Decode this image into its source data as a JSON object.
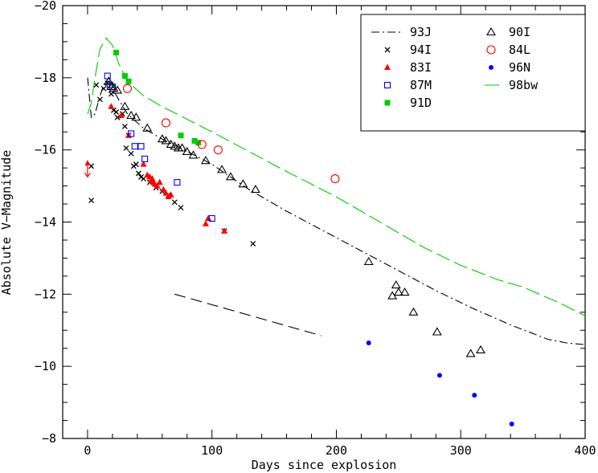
{
  "chart_data": {
    "type": "scatter",
    "xlabel": "Days since explosion",
    "ylabel": "Absolute V−Magnitude",
    "xlim": [
      -20,
      400
    ],
    "ylim": [
      -8,
      -20
    ],
    "y_inverted": true,
    "x_ticks": [
      0,
      100,
      200,
      300,
      400
    ],
    "x_tick_labels": [
      "0",
      "100",
      "200",
      "300",
      "400"
    ],
    "y_ticks": [
      -8,
      -10,
      -12,
      -14,
      -16,
      -18,
      -20
    ],
    "y_tick_labels": [
      "−8",
      "−10",
      "−12",
      "−14",
      "−16",
      "−18",
      "−20"
    ],
    "grid": false,
    "legend_position": "top-right",
    "series": [
      {
        "name": "93J",
        "kind": "line",
        "style": "dashdot",
        "color": "#000000",
        "points": [
          [
            0,
            -18.0
          ],
          [
            3,
            -16.9
          ],
          [
            6,
            -17.0
          ],
          [
            10,
            -17.5
          ],
          [
            14,
            -17.9
          ],
          [
            17,
            -17.9
          ],
          [
            20,
            -17.7
          ],
          [
            25,
            -17.4
          ],
          [
            32,
            -17.0
          ],
          [
            45,
            -16.6
          ],
          [
            60,
            -16.3
          ],
          [
            75,
            -16.05
          ],
          [
            100,
            -15.6
          ],
          [
            130,
            -14.9
          ],
          [
            160,
            -14.3
          ],
          [
            190,
            -13.75
          ],
          [
            220,
            -13.2
          ],
          [
            250,
            -12.65
          ],
          [
            280,
            -12.1
          ],
          [
            310,
            -11.6
          ],
          [
            340,
            -11.15
          ],
          [
            370,
            -10.75
          ],
          [
            385,
            -10.65
          ],
          [
            400,
            -10.6
          ]
        ]
      },
      {
        "name": "94I",
        "kind": "marker",
        "marker": "cross",
        "color": "#000000",
        "points": [
          [
            3,
            -15.55
          ],
          [
            3,
            -14.6
          ],
          [
            7,
            -17.8
          ],
          [
            10,
            -17.4
          ],
          [
            13,
            -17.7
          ],
          [
            16,
            -17.85
          ],
          [
            19,
            -17.55
          ],
          [
            21,
            -17.1
          ],
          [
            23,
            -17.05
          ],
          [
            24,
            -16.9
          ],
          [
            28,
            -17.0
          ],
          [
            30,
            -16.65
          ],
          [
            31,
            -16.05
          ],
          [
            33,
            -16.4
          ],
          [
            35,
            -15.9
          ],
          [
            37,
            -15.55
          ],
          [
            39,
            -15.6
          ],
          [
            41,
            -15.35
          ],
          [
            43,
            -15.25
          ],
          [
            45,
            -15.2
          ],
          [
            50,
            -15.1
          ],
          [
            55,
            -14.95
          ],
          [
            60,
            -14.85
          ],
          [
            65,
            -14.75
          ],
          [
            70,
            -14.55
          ],
          [
            75,
            -14.4
          ],
          [
            110,
            -13.75
          ],
          [
            133,
            -13.4
          ]
        ]
      },
      {
        "name": "83I",
        "kind": "marker",
        "marker": "filled-triangle",
        "color": "#ff0000",
        "points": [
          [
            19,
            -17.2
          ],
          [
            27,
            -16.95
          ],
          [
            33,
            -16.4
          ],
          [
            45,
            -15.6
          ],
          [
            48,
            -15.3
          ],
          [
            50,
            -15.25
          ],
          [
            51,
            -15.15
          ],
          [
            52,
            -15.2
          ],
          [
            53,
            -15.1
          ],
          [
            54,
            -15.05
          ],
          [
            56,
            -15.0
          ],
          [
            58,
            -15.1
          ],
          [
            61,
            -14.9
          ],
          [
            63,
            -14.8
          ],
          [
            65,
            -14.7
          ],
          [
            67,
            -14.75
          ],
          [
            95,
            -13.95
          ],
          [
            97,
            -14.1
          ],
          [
            110,
            -13.75
          ]
        ],
        "upper_limit": {
          "x": 0,
          "y_top": -15.7,
          "y_bottom": -15.25
        }
      },
      {
        "name": "87M",
        "kind": "marker",
        "marker": "open-square",
        "color": "#0000ff",
        "points": [
          [
            16,
            -18.05
          ],
          [
            18,
            -17.8
          ],
          [
            20,
            -17.75
          ],
          [
            35,
            -16.45
          ],
          [
            38,
            -16.1
          ],
          [
            43,
            -16.1
          ],
          [
            46,
            -15.75
          ],
          [
            72,
            -15.1
          ],
          [
            100,
            -14.1
          ]
        ]
      },
      {
        "name": "91D",
        "kind": "marker",
        "marker": "filled-square",
        "color": "#00cc00",
        "points": [
          [
            23,
            -18.7
          ],
          [
            30,
            -18.05
          ],
          [
            33,
            -17.9
          ],
          [
            75,
            -16.4
          ],
          [
            86,
            -16.25
          ],
          [
            89,
            -16.2
          ]
        ]
      },
      {
        "name": "90I",
        "kind": "marker",
        "marker": "open-triangle",
        "color": "#000000",
        "points": [
          [
            17,
            -17.9
          ],
          [
            19,
            -17.75
          ],
          [
            21,
            -17.7
          ],
          [
            24,
            -17.65
          ],
          [
            30,
            -17.2
          ],
          [
            35,
            -16.95
          ],
          [
            39,
            -16.9
          ],
          [
            48,
            -16.6
          ],
          [
            60,
            -16.3
          ],
          [
            63,
            -16.25
          ],
          [
            67,
            -16.15
          ],
          [
            70,
            -16.1
          ],
          [
            73,
            -16.05
          ],
          [
            76,
            -16.05
          ],
          [
            80,
            -15.95
          ],
          [
            85,
            -15.85
          ],
          [
            95,
            -15.7
          ],
          [
            108,
            -15.45
          ],
          [
            115,
            -15.25
          ],
          [
            125,
            -15.05
          ],
          [
            135,
            -14.9
          ],
          [
            226,
            -12.9
          ],
          [
            245,
            -11.95
          ],
          [
            248,
            -12.25
          ],
          [
            250,
            -12.05
          ],
          [
            255,
            -12.05
          ],
          [
            262,
            -11.5
          ],
          [
            281,
            -10.95
          ],
          [
            308,
            -10.35
          ],
          [
            316,
            -10.45
          ]
        ]
      },
      {
        "name": "84L",
        "kind": "marker",
        "marker": "open-circle",
        "color": "#ff0000",
        "points": [
          [
            32,
            -17.7
          ],
          [
            63,
            -16.75
          ],
          [
            92,
            -16.15
          ],
          [
            105,
            -16.0
          ],
          [
            199,
            -15.2
          ]
        ]
      },
      {
        "name": "96N",
        "kind": "marker",
        "marker": "filled-circle",
        "color": "#0000ff",
        "points": [
          [
            226,
            -10.65
          ],
          [
            283,
            -9.75
          ],
          [
            311,
            -9.2
          ],
          [
            341,
            -8.4
          ]
        ]
      },
      {
        "name": "98bw",
        "kind": "line",
        "style": "longdash",
        "color": "#00cc00",
        "points": [
          [
            0,
            -17.0
          ],
          [
            3,
            -17.3
          ],
          [
            6,
            -18.0
          ],
          [
            10,
            -18.8
          ],
          [
            15,
            -19.1
          ],
          [
            20,
            -18.9
          ],
          [
            25,
            -18.4
          ],
          [
            32,
            -17.9
          ],
          [
            45,
            -17.5
          ],
          [
            60,
            -17.2
          ],
          [
            80,
            -16.85
          ],
          [
            100,
            -16.5
          ],
          [
            130,
            -15.95
          ],
          [
            160,
            -15.4
          ],
          [
            200,
            -14.7
          ],
          [
            240,
            -13.9
          ],
          [
            270,
            -13.3
          ],
          [
            300,
            -12.8
          ],
          [
            330,
            -12.4
          ],
          [
            350,
            -12.2
          ],
          [
            380,
            -11.75
          ],
          [
            400,
            -11.4
          ]
        ]
      }
    ],
    "annotations": [
      {
        "kind": "line",
        "style": "dash",
        "color": "#000000",
        "points": [
          [
            70,
            -12.0
          ],
          [
            188,
            -10.85
          ]
        ]
      }
    ],
    "legend": {
      "columns": [
        [
          "93J",
          "94I",
          "83I",
          "87M",
          "91D"
        ],
        [
          "90I",
          "84L",
          "96N",
          "98bw"
        ]
      ]
    }
  }
}
